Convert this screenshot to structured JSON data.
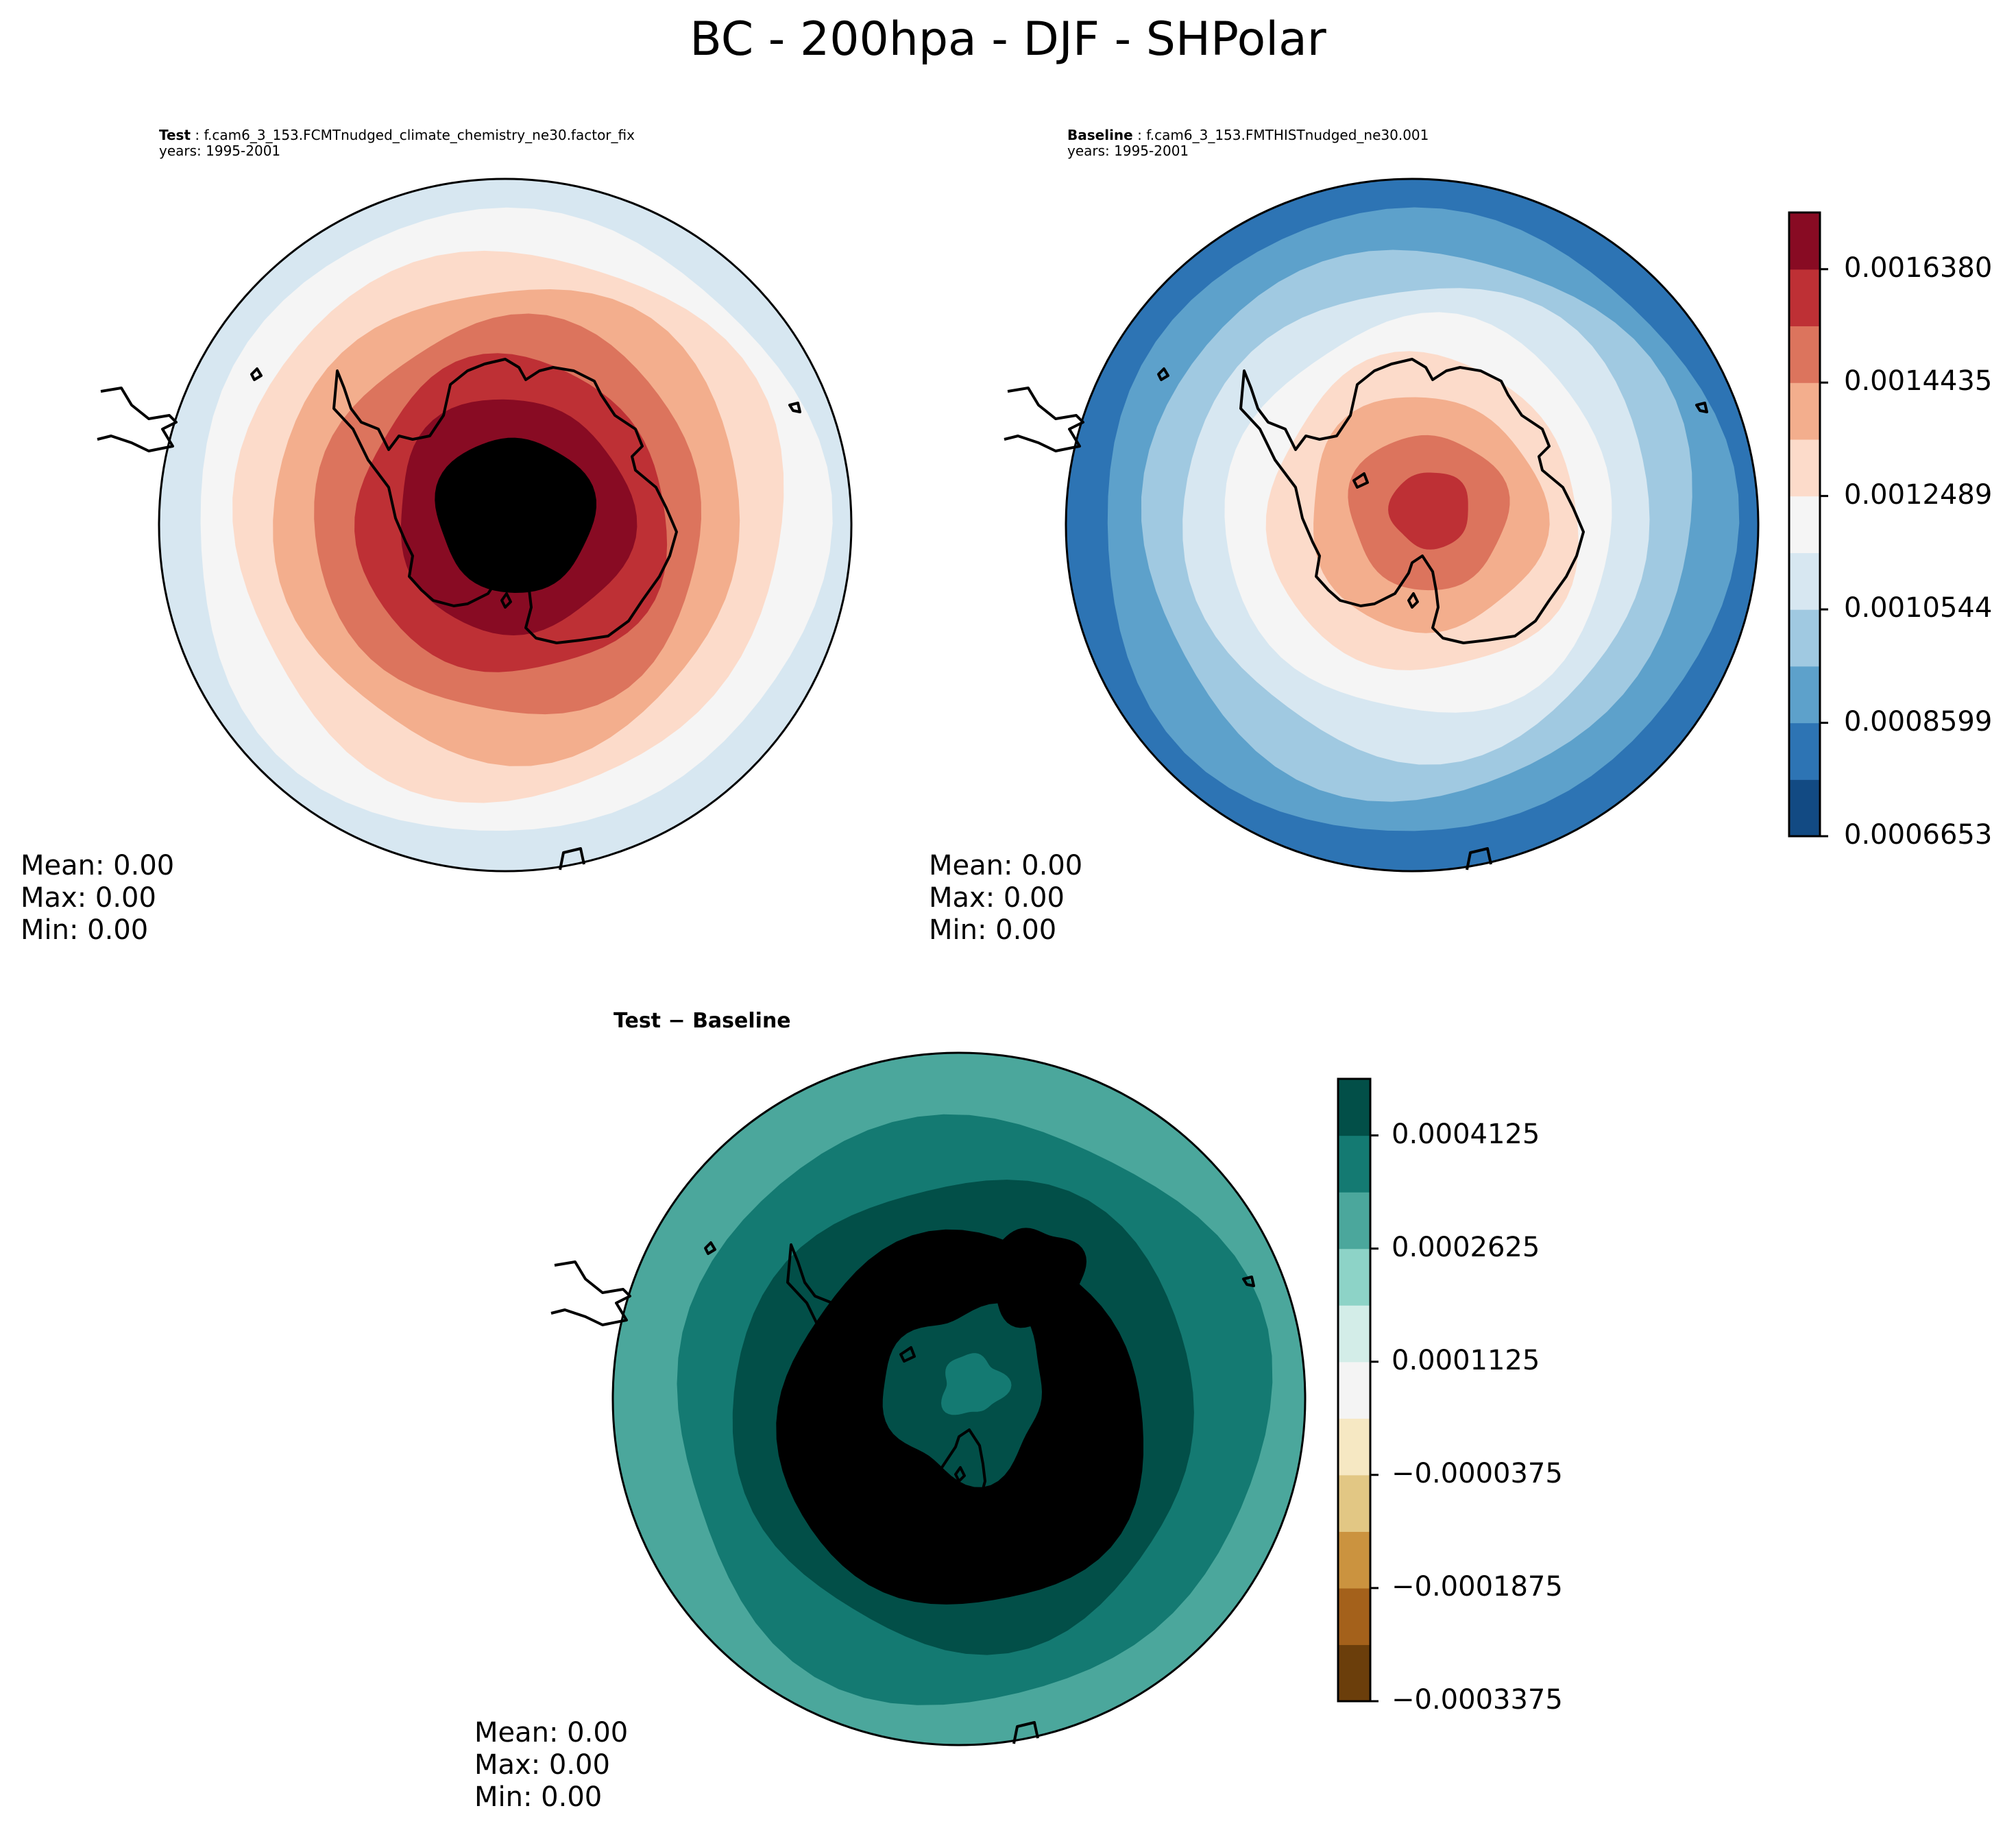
{
  "title": "BC - 200hpa - DJF - SHPolar",
  "chart_data": [
    {
      "type": "contour",
      "panel": "test",
      "header_label": "Test",
      "case": "f.cam6_3_153.FCMTnudged_climate_chemistry_ne30.factor_fix",
      "years": "years: 1995-2001",
      "levels_from_outer": [
        4,
        5,
        6,
        7,
        8,
        9,
        10,
        11,
        12
      ],
      "stats": {
        "mean": "Mean:  0.00",
        "max": "Max:  0.00",
        "min": "Min:  0.00"
      }
    },
    {
      "type": "contour",
      "panel": "baseline",
      "header_label": "Baseline",
      "case": "f.cam6_3_153.FMTHISTnudged_ne30.001",
      "years": "years: 1995-2001",
      "levels_from_outer": [
        1,
        2,
        3,
        4,
        5,
        6,
        7,
        8,
        9
      ],
      "stats": {
        "mean": "Mean:  0.00",
        "max": "Max:  0.00",
        "min": "Min:  0.00"
      }
    },
    {
      "type": "contour",
      "panel": "difference",
      "title_test": "Test",
      "title_minus": " − ",
      "title_base": "Baseline",
      "levels_from_outer": [
        8,
        9,
        10,
        11,
        9
      ],
      "stats": {
        "mean": "Mean:  0.00",
        "max": "Max:  0.00",
        "min": "Min:  0.00"
      }
    }
  ],
  "colorbar_main": {
    "colors": [
      "#124a83",
      "#2d74b4",
      "#5da1cb",
      "#a0c9e1",
      "#d7e7f1",
      "#f5f5f5",
      "#fcdbca",
      "#f3ae8d",
      "#dc745d",
      "#be3035",
      "#880b23"
    ],
    "ticks": [
      "0.0006653",
      "0.0008599",
      "0.0010544",
      "0.0012489",
      "0.0014435",
      "0.0016380"
    ]
  },
  "colorbar_diff": {
    "colors": [
      "#6b3e0b",
      "#a4611b",
      "#cb933f",
      "#e2c784",
      "#f6e8c3",
      "#f4f4f4",
      "#d3ede8",
      "#8dd3c7",
      "#4ba79c",
      "#147a72",
      "#024f48"
    ],
    "ticks": [
      "−0.0003375",
      "−0.0001875",
      "−0.0000375",
      "0.0001125",
      "0.0002625",
      "0.0004125"
    ]
  }
}
